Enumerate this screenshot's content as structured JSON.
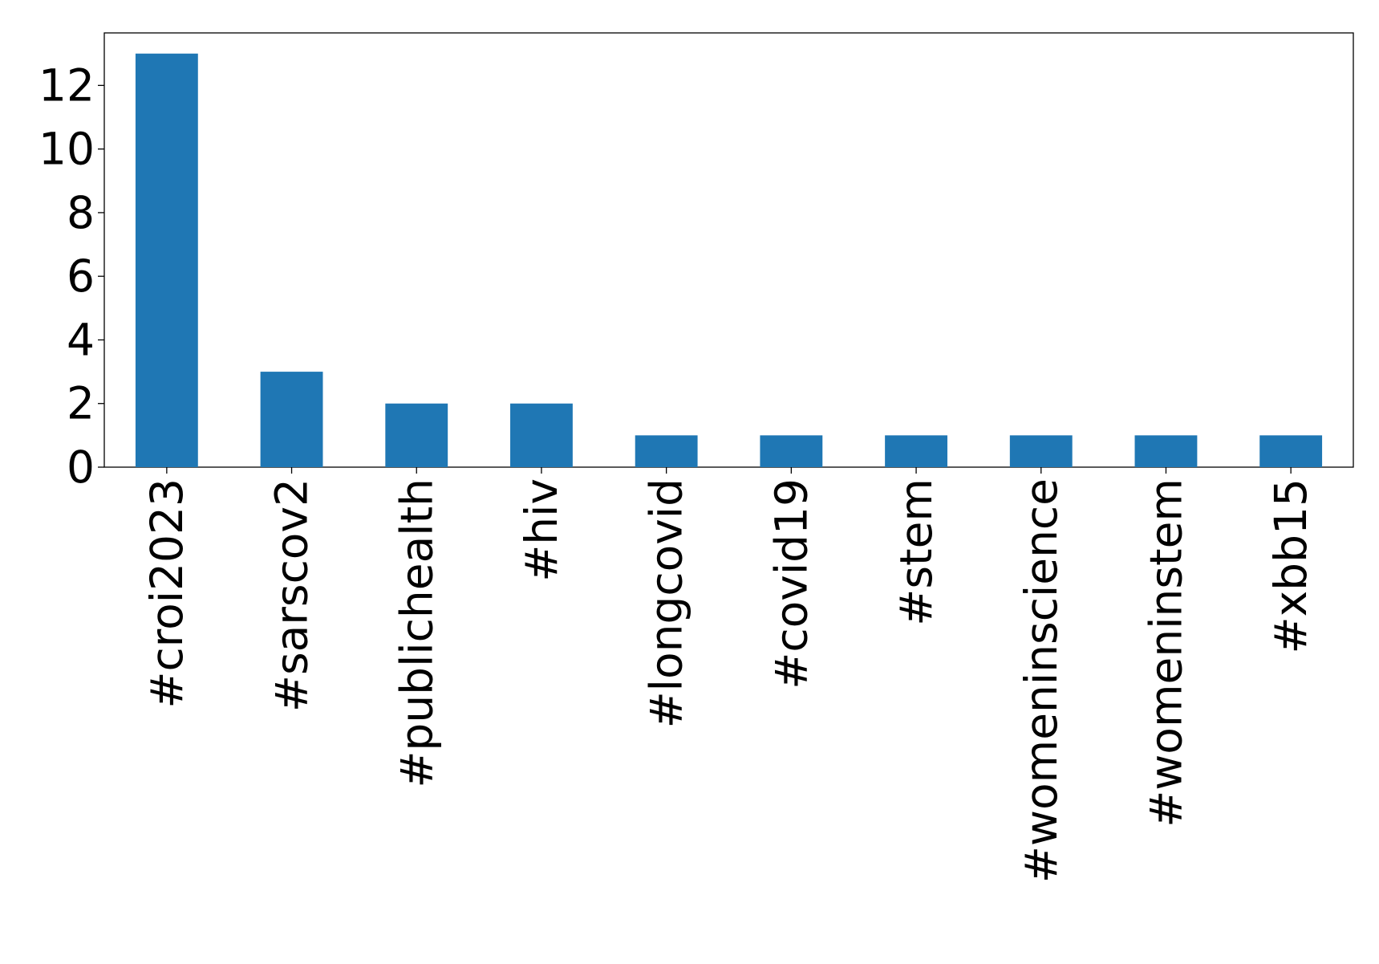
{
  "chart_data": {
    "type": "bar",
    "categories": [
      "#croi2023",
      "#sarscov2",
      "#publichealth",
      "#hiv",
      "#longcovid",
      "#covid19",
      "#stem",
      "#womeninscience",
      "#womeninstem",
      "#xbb15"
    ],
    "values": [
      13,
      3,
      2,
      2,
      1,
      1,
      1,
      1,
      1,
      1
    ],
    "color": "#1f77b4",
    "ylim": [
      0,
      13.65
    ],
    "yticks": [
      0,
      2,
      4,
      6,
      8,
      10,
      12
    ],
    "grid": false
  }
}
